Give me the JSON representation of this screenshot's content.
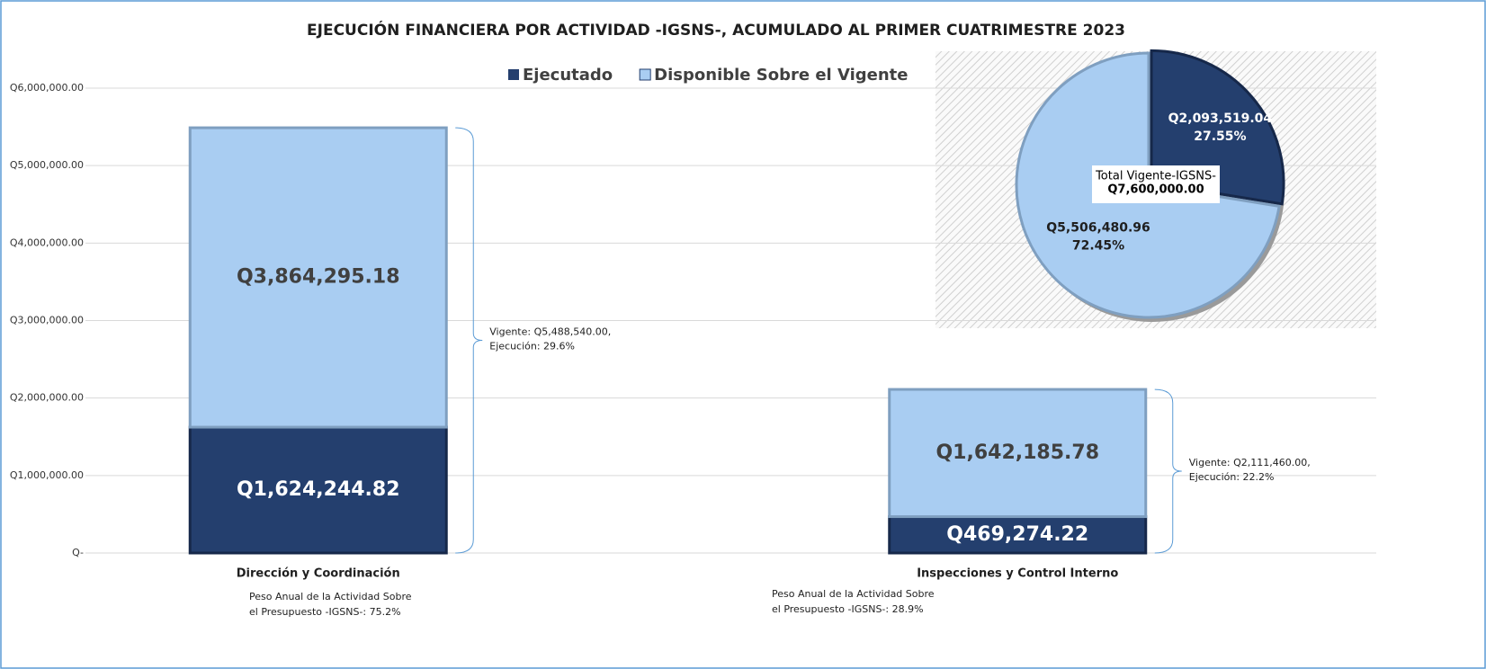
{
  "chart_data": [
    {
      "type": "bar",
      "stacked": true,
      "title": "EJECUCIÓN FINANCIERA POR ACTIVIDAD -IGSNS-, ACUMULADO AL  PRIMER CUATRIMESTRE 2023",
      "categories": [
        "Dirección y Coordinación",
        "Inspecciones y Control Interno"
      ],
      "series": [
        {
          "name": "Ejecutado",
          "color": "#243f6e",
          "label_color": "#ffffff",
          "values": [
            1624244.82,
            469274.22
          ],
          "value_labels": [
            "Q1,624,244.82",
            "Q469,274.22"
          ]
        },
        {
          "name": "Disponible Sobre el Vigente",
          "color": "#a9cdf2",
          "label_color": "#404040",
          "values": [
            3864295.18,
            1642185.78
          ],
          "value_labels": [
            "Q3,864,295.18",
            "Q1,642,185.78"
          ]
        }
      ],
      "ylim": [
        0,
        6000000
      ],
      "yticks": [
        {
          "value": 0,
          "label": "Q-"
        },
        {
          "value": 1000000,
          "label": "Q1,000,000.00"
        },
        {
          "value": 2000000,
          "label": "Q2,000,000.00"
        },
        {
          "value": 3000000,
          "label": "Q3,000,000.00"
        },
        {
          "value": 4000000,
          "label": "Q4,000,000.00"
        },
        {
          "value": 5000000,
          "label": "Q5,000,000.00"
        },
        {
          "value": 6000000,
          "label": "Q6,000,000.00"
        }
      ],
      "grid": true,
      "annotations": [
        [
          "Vigente: Q5,488,540.00,",
          "Ejecución: 29.6%"
        ],
        [
          "Vigente: Q2,111,460.00,",
          "Ejecución: 22.2%"
        ]
      ],
      "notes": [
        [
          "Peso  Anual de la Actividad Sobre",
          "el Presupuesto -IGSNS-: 75.2%"
        ],
        [
          "Peso  Anual de la Actividad Sobre",
          "el Presupuesto -IGSNS-: 28.9%"
        ]
      ]
    },
    {
      "type": "pie",
      "categories": [
        "Ejecutado",
        "Disponible Sobre el Vigente"
      ],
      "colors": [
        "#243f6e",
        "#a9cdf2"
      ],
      "values": [
        2093519.04,
        5506480.96
      ],
      "value_labels": [
        "Q2,093,519.04",
        "Q5,506,480.96"
      ],
      "percent_labels": [
        "27.55%",
        "72.45%"
      ],
      "center_label": [
        "Total Vigente-IGSNS-",
        "Q7,600,000.00"
      ]
    }
  ]
}
